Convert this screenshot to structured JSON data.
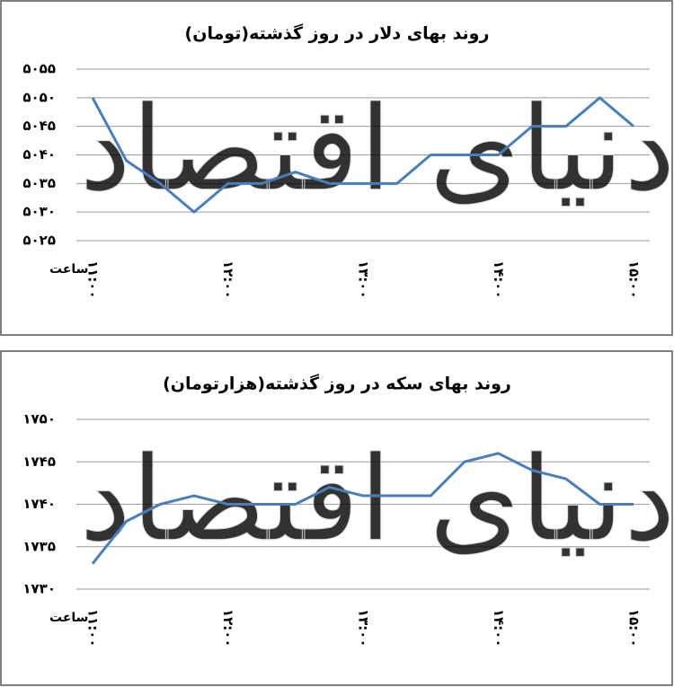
{
  "chart_data": [
    {
      "type": "line",
      "title": "روند بهای دلار در روز گذشته(تومان)",
      "x_label": "ساعت",
      "watermark": "دنیای اقتصاد",
      "categories": [
        "۱۱:۰۰",
        null,
        null,
        null,
        "۱۲:۰۰",
        null,
        null,
        null,
        "۱۳:۰۰",
        null,
        null,
        null,
        "۱۴:۰۰",
        null,
        null,
        null,
        "۱۵:۰۰"
      ],
      "series": [
        {
          "name": "دلار",
          "color": "#4a7ebb",
          "values": [
            5050,
            5039,
            5035,
            5030,
            5035,
            5035,
            5037,
            5035,
            5035,
            5035,
            5040,
            5040,
            5040,
            5045,
            5045,
            5050,
            5045
          ]
        }
      ],
      "ylim": [
        5025,
        5055
      ],
      "yticks": [
        {
          "value": 5025,
          "label": "۵۰۲۵"
        },
        {
          "value": 5030,
          "label": "۵۰۳۰"
        },
        {
          "value": 5035,
          "label": "۵۰۳۵"
        },
        {
          "value": 5040,
          "label": "۵۰۴۰"
        },
        {
          "value": 5045,
          "label": "۵۰۴۵"
        },
        {
          "value": 5050,
          "label": "۵۰۵۰"
        },
        {
          "value": 5055,
          "label": "۵۰۵۵"
        }
      ],
      "grid": true
    },
    {
      "type": "line",
      "title": "روند بهای سکه در روز گذشته(هزارتومان)",
      "x_label": "ساعت",
      "watermark": "دنیای اقتصاد",
      "categories": [
        "۱۱:۰۰",
        null,
        null,
        null,
        "۱۲:۰۰",
        null,
        null,
        null,
        "۱۳:۰۰",
        null,
        null,
        null,
        "۱۴:۰۰",
        null,
        null,
        null,
        "۱۵:۰۰"
      ],
      "series": [
        {
          "name": "سکه",
          "color": "#4a7ebb",
          "values": [
            1733,
            1738,
            1740,
            1741,
            1740,
            1740,
            1740,
            1742,
            1741,
            1741,
            1741,
            1745,
            1746,
            1744,
            1743,
            1740,
            1740
          ]
        }
      ],
      "ylim": [
        1730,
        1750
      ],
      "yticks": [
        {
          "value": 1730,
          "label": "۱۷۳۰"
        },
        {
          "value": 1735,
          "label": "۱۷۳۵"
        },
        {
          "value": 1740,
          "label": "۱۷۴۰"
        },
        {
          "value": 1745,
          "label": "۱۷۴۵"
        },
        {
          "value": 1750,
          "label": "۱۷۵۰"
        }
      ],
      "grid": true
    }
  ]
}
